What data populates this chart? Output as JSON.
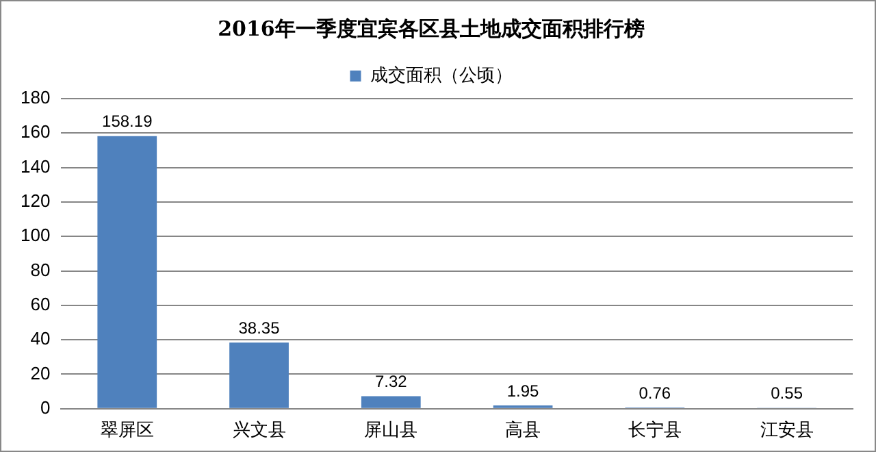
{
  "chart_data": {
    "type": "bar",
    "title": "2016年一季度宜宾各区县土地成交面积排行榜",
    "categories": [
      "翠屏区",
      "兴文县",
      "屏山县",
      "高县",
      "长宁县",
      "江安县"
    ],
    "series": [
      {
        "name": "成交面积（公顷）",
        "color": "#4f81bd",
        "values": [
          158.19,
          38.35,
          7.32,
          1.95,
          0.76,
          0.55
        ]
      }
    ],
    "ylim": [
      0,
      180
    ],
    "yticks": [
      0,
      20,
      40,
      60,
      80,
      100,
      120,
      140,
      160,
      180
    ],
    "grid": "y",
    "legend": "top",
    "data_labels": true
  }
}
